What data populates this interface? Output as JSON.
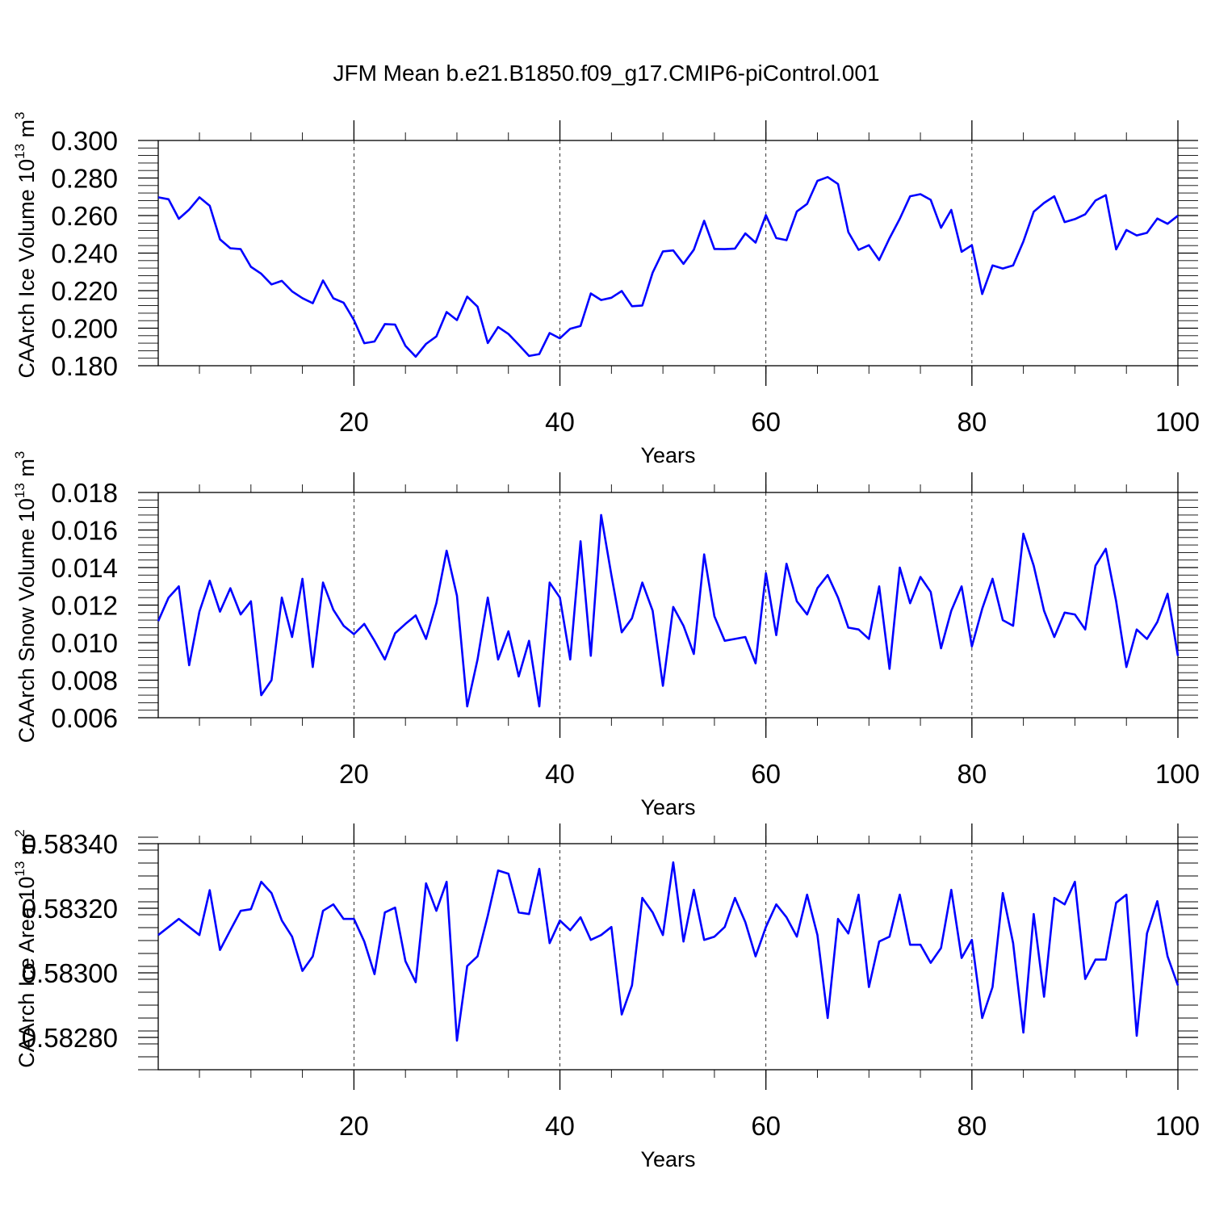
{
  "title": "JFM Mean b.e21.B1850.f09_g17.CMIP6-piControl.001",
  "colors": {
    "line": "#0000ff",
    "axis": "#000000",
    "grid": "#000000"
  },
  "chart_data": [
    {
      "type": "line",
      "title": "JFM Mean b.e21.B1850.f09_g17.CMIP6-piControl.001",
      "xlabel": "Years",
      "ylabel": "CAArch Ice Volume 10",
      "ylabel_exp": "13",
      "ylabel_unit": " m",
      "ylabel_unit_exp": "3",
      "xlim": [
        1,
        100
      ],
      "ylim": [
        0.18,
        0.3
      ],
      "xticks": [
        20,
        40,
        60,
        80,
        100
      ],
      "xtick_labels": [
        "20",
        "40",
        "60",
        "80",
        "100"
      ],
      "yticks": [
        0.18,
        0.2,
        0.22,
        0.24,
        0.26,
        0.28,
        0.3
      ],
      "ytick_labels": [
        "0.180",
        "0.200",
        "0.220",
        "0.240",
        "0.260",
        "0.280",
        "0.300"
      ],
      "grid": "vertical dashed at major x ticks",
      "series": [
        {
          "name": "CAArch Ice Volume",
          "values": [
            0.2697,
            0.2687,
            0.2583,
            0.2632,
            0.2697,
            0.2652,
            0.2473,
            0.2426,
            0.2421,
            0.2327,
            0.229,
            0.2233,
            0.2252,
            0.2196,
            0.216,
            0.2133,
            0.2254,
            0.2159,
            0.2136,
            0.2043,
            0.192,
            0.1929,
            0.2022,
            0.2019,
            0.1906,
            0.1848,
            0.1916,
            0.1956,
            0.2086,
            0.2043,
            0.2168,
            0.2115,
            0.1921,
            0.2006,
            0.1969,
            0.1912,
            0.1852,
            0.1862,
            0.1974,
            0.1946,
            0.1997,
            0.2012,
            0.2185,
            0.215,
            0.2162,
            0.2198,
            0.2117,
            0.2121,
            0.2296,
            0.2409,
            0.2414,
            0.2343,
            0.2418,
            0.2572,
            0.2422,
            0.2421,
            0.2424,
            0.2505,
            0.2456,
            0.2602,
            0.248,
            0.2469,
            0.2622,
            0.2662,
            0.2785,
            0.2805,
            0.2768,
            0.2512,
            0.2417,
            0.2442,
            0.2363,
            0.2479,
            0.2583,
            0.2703,
            0.2714,
            0.2684,
            0.2535,
            0.263,
            0.2407,
            0.2442,
            0.2182,
            0.2334,
            0.2318,
            0.2334,
            0.2462,
            0.262,
            0.2667,
            0.2703,
            0.2565,
            0.2581,
            0.2607,
            0.268,
            0.2709,
            0.242,
            0.2523,
            0.2494,
            0.2508,
            0.2584,
            0.2556,
            0.2599
          ]
        }
      ]
    },
    {
      "type": "line",
      "xlabel": "Years",
      "ylabel": "CAArch Snow Volume 10",
      "ylabel_exp": "13",
      "ylabel_unit": " m",
      "ylabel_unit_exp": "3",
      "xlim": [
        1,
        100
      ],
      "ylim": [
        0.006,
        0.018
      ],
      "xticks": [
        20,
        40,
        60,
        80,
        100
      ],
      "xtick_labels": [
        "20",
        "40",
        "60",
        "80",
        "100"
      ],
      "yticks": [
        0.006,
        0.008,
        0.01,
        0.012,
        0.014,
        0.016,
        0.018
      ],
      "ytick_labels": [
        "0.006",
        "0.008",
        "0.010",
        "0.012",
        "0.014",
        "0.016",
        "0.018"
      ],
      "grid": "vertical dashed at major x ticks",
      "series": [
        {
          "name": "CAArch Snow Volume",
          "values": [
            0.01115,
            0.0124,
            0.013,
            0.0088,
            0.01165,
            0.0133,
            0.01165,
            0.0129,
            0.0115,
            0.0122,
            0.0072,
            0.008,
            0.0124,
            0.0103,
            0.0134,
            0.0087,
            0.0132,
            0.01175,
            0.0109,
            0.01045,
            0.011,
            0.0101,
            0.0091,
            0.0105,
            0.011,
            0.01145,
            0.0102,
            0.0121,
            0.0149,
            0.0125,
            0.0066,
            0.0091,
            0.0124,
            0.0091,
            0.0106,
            0.0082,
            0.0101,
            0.0066,
            0.0132,
            0.0124,
            0.0091,
            0.0154,
            0.0093,
            0.0168,
            0.0136,
            0.01055,
            0.0113,
            0.0132,
            0.0117,
            0.0077,
            0.0119,
            0.0109,
            0.0094,
            0.0147,
            0.0114,
            0.0101,
            0.0102,
            0.0103,
            0.0089,
            0.0137,
            0.0104,
            0.0142,
            0.0122,
            0.0115,
            0.0129,
            0.0136,
            0.0124,
            0.0108,
            0.0107,
            0.0102,
            0.013,
            0.0086,
            0.014,
            0.0121,
            0.0135,
            0.0127,
            0.0097,
            0.0117,
            0.013,
            0.0098,
            0.0118,
            0.0134,
            0.0112,
            0.0109,
            0.0158,
            0.0141,
            0.0117,
            0.0103,
            0.0116,
            0.0115,
            0.0107,
            0.0141,
            0.015,
            0.0122,
            0.0087,
            0.0107,
            0.0102,
            0.0111,
            0.0126,
            0.0093
          ]
        }
      ]
    },
    {
      "type": "line",
      "xlabel": "Years",
      "ylabel": "CAArch Ice Area 10",
      "ylabel_exp": "13",
      "ylabel_unit": " m",
      "ylabel_unit_exp": "2",
      "xlim": [
        1,
        100
      ],
      "ylim": [
        0.5827,
        0.5834
      ],
      "xticks": [
        20,
        40,
        60,
        80,
        100
      ],
      "xtick_labels": [
        "20",
        "40",
        "60",
        "80",
        "100"
      ],
      "yticks": [
        0.5828,
        0.583,
        0.5832,
        0.5834
      ],
      "ytick_labels": [
        "0.58280",
        "0.58300",
        "0.58320",
        "0.58340"
      ],
      "grid": "vertical dashed at major x ticks",
      "series": [
        {
          "name": "CAArch Ice Area",
          "values": [
            0.583117,
            0.583142,
            0.583167,
            0.583142,
            0.583117,
            0.583256,
            0.583071,
            0.583132,
            0.583192,
            0.583197,
            0.583282,
            0.583247,
            0.583162,
            0.583112,
            0.583006,
            0.583051,
            0.583192,
            0.583212,
            0.583167,
            0.583167,
            0.583097,
            0.582996,
            0.583187,
            0.583202,
            0.583036,
            0.582971,
            0.583277,
            0.583192,
            0.583282,
            0.58279,
            0.583021,
            0.583051,
            0.583177,
            0.583317,
            0.583307,
            0.583187,
            0.583182,
            0.583322,
            0.583092,
            0.583162,
            0.583132,
            0.583172,
            0.583102,
            0.583117,
            0.583142,
            0.582871,
            0.582961,
            0.583232,
            0.583187,
            0.583117,
            0.583342,
            0.583097,
            0.583257,
            0.583102,
            0.583112,
            0.583142,
            0.583232,
            0.583157,
            0.583051,
            0.583142,
            0.583212,
            0.583172,
            0.583112,
            0.583242,
            0.583117,
            0.58286,
            0.583167,
            0.583122,
            0.583242,
            0.582956,
            0.583097,
            0.583112,
            0.583242,
            0.583087,
            0.583087,
            0.583031,
            0.583077,
            0.583257,
            0.583046,
            0.583102,
            0.58286,
            0.582956,
            0.583247,
            0.583092,
            0.582815,
            0.583182,
            0.582926,
            0.583232,
            0.583212,
            0.583282,
            0.582981,
            0.583041,
            0.583041,
            0.583217,
            0.583242,
            0.582805,
            0.583122,
            0.583222,
            0.583051,
            0.582961
          ]
        }
      ]
    }
  ]
}
